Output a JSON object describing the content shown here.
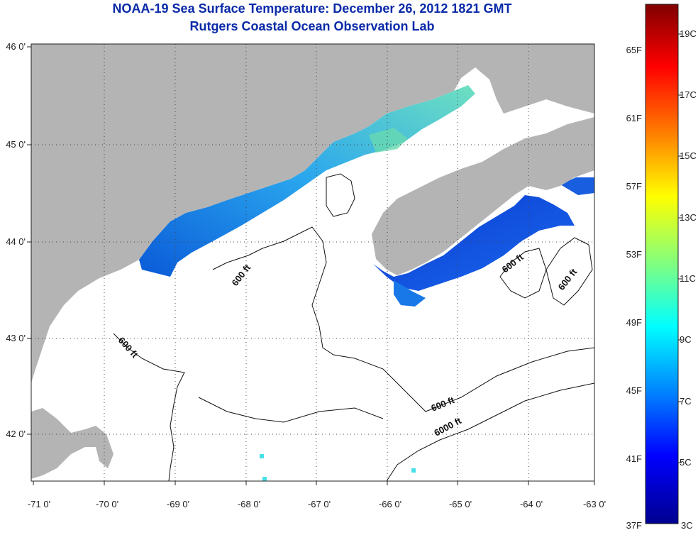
{
  "title": "NOAA-19 Sea Surface Temperature:  December 26, 2012 1821 GMT",
  "subtitle": "Rutgers Coastal Ocean Observation Lab",
  "map": {
    "lon_ticks": [
      "-71 0'",
      "-70 0'",
      "-69 0'",
      "-68 0'",
      "-67 0'",
      "-66 0'",
      "-65 0'",
      "-64 0'",
      "-63 0'"
    ],
    "lat_ticks": [
      "46 0'",
      "45 0'",
      "44 0'",
      "43 0'",
      "42 0'"
    ],
    "land_color": "#b4b4b4",
    "water_color": "#ffffff",
    "contour_labels": [
      "600 ft",
      "600 ft",
      "600 ft",
      "600 ft",
      "600 ft",
      "6000 ft"
    ]
  },
  "colorbar": {
    "fahrenheit_labels": [
      "65F",
      "61F",
      "57F",
      "53F",
      "49F",
      "45F",
      "41F",
      "37F"
    ],
    "celsius_labels": [
      "19C",
      "17C",
      "15C",
      "13C",
      "11C",
      "9C",
      "7C",
      "5C",
      "3C"
    ],
    "colors_top_to_bottom": [
      "#7f0000",
      "#ff0000",
      "#ff8000",
      "#ffff00",
      "#80ff80",
      "#00ffff",
      "#0080ff",
      "#0000ff",
      "#00008f"
    ]
  }
}
